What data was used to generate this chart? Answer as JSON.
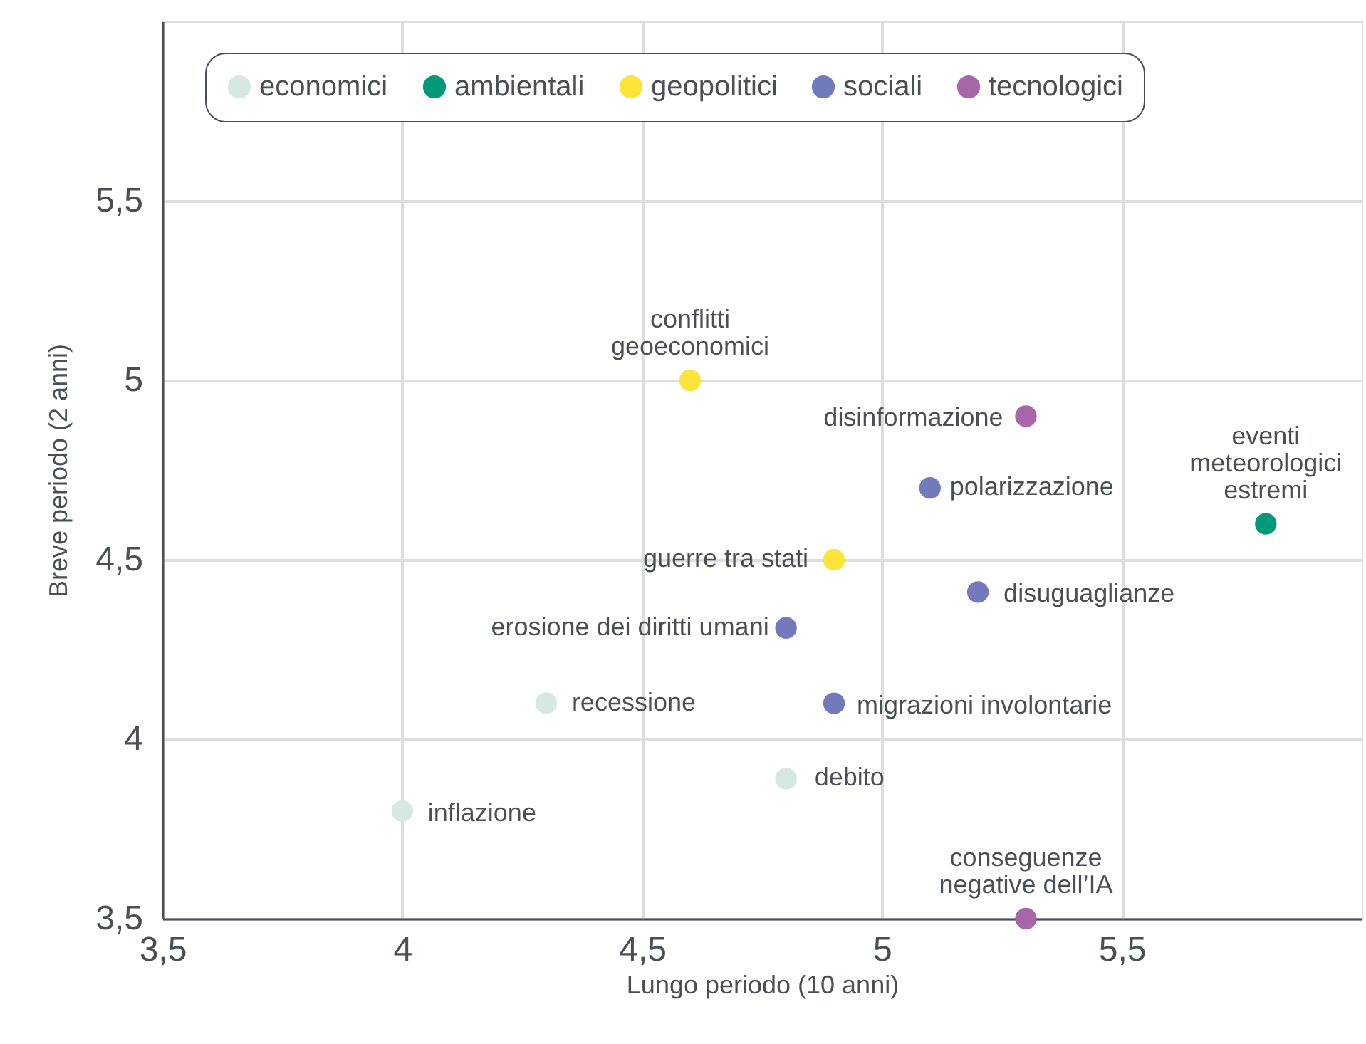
{
  "chart_data": {
    "type": "scatter",
    "xlabel": "Lungo periodo (10 anni)",
    "ylabel": "Breve periodo (2 anni)",
    "xlim": [
      3.5,
      6
    ],
    "ylim": [
      3.5,
      6
    ],
    "xticks": [
      {
        "value": 3.5,
        "label": "3,5"
      },
      4,
      {
        "value": 4.5,
        "label": "4,5"
      },
      5,
      {
        "value": 5.5,
        "label": "5,5"
      }
    ],
    "yticks": [
      {
        "value": 3.5,
        "label": "3,5"
      },
      4,
      {
        "value": 4.5,
        "label": "4,5"
      },
      5,
      {
        "value": 5.5,
        "label": "5,5"
      }
    ],
    "grid": true,
    "legend": "top",
    "marker": "circle",
    "series": [
      {
        "name": "economici",
        "color": "#d5e8e1",
        "x": [
          4.0,
          4.3,
          4.8
        ],
        "values": [
          3.8,
          4.1,
          3.89
        ]
      },
      {
        "name": "ambientali",
        "color": "#009a7b",
        "x": [
          5.8
        ],
        "values": [
          4.6
        ]
      },
      {
        "name": "geopolitici",
        "color": "#fde43b",
        "x": [
          4.6,
          4.9
        ],
        "values": [
          5.0,
          4.5
        ]
      },
      {
        "name": "sociali",
        "color": "#7279bc",
        "x": [
          4.8,
          4.9,
          5.1,
          5.2
        ],
        "values": [
          4.31,
          4.1,
          4.7,
          4.41
        ]
      },
      {
        "name": "tecnologici",
        "color": "#a666a9",
        "x": [
          5.3,
          5.3
        ],
        "values": [
          4.9,
          3.5
        ]
      }
    ],
    "annotations": [
      {
        "text": "inflazione",
        "x": 4.0,
        "y": 3.8
      },
      {
        "text": "recessione",
        "x": 4.3,
        "y": 4.1
      },
      {
        "text": "debito",
        "x": 4.8,
        "y": 3.89
      },
      {
        "text": "eventi\nmeteorologici\nestremi",
        "x": 5.8,
        "y": 4.6
      },
      {
        "text": "conflitti\ngeoeconomici",
        "x": 4.6,
        "y": 5.0
      },
      {
        "text": "guerre tra stati",
        "x": 4.9,
        "y": 4.5
      },
      {
        "text": "erosione dei diritti umani",
        "x": 4.8,
        "y": 4.31
      },
      {
        "text": "migrazioni involontarie",
        "x": 4.9,
        "y": 4.1
      },
      {
        "text": "polarizzazione",
        "x": 5.1,
        "y": 4.7
      },
      {
        "text": "disuguaglianze",
        "x": 5.2,
        "y": 4.41
      },
      {
        "text": "disinformazione",
        "x": 5.3,
        "y": 4.9
      },
      {
        "text": "conseguenze\nnegative dell’IA",
        "x": 5.3,
        "y": 3.5
      }
    ]
  }
}
